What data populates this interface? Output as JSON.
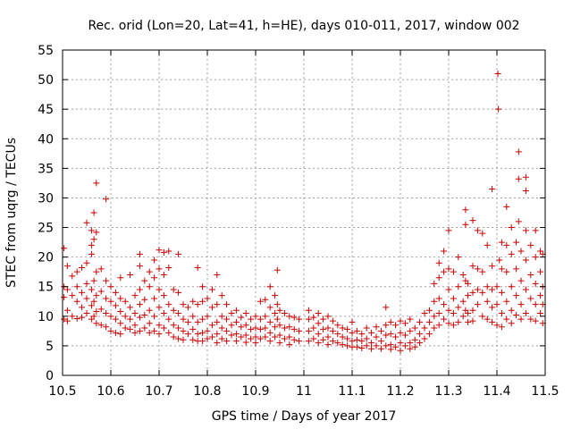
{
  "chart_data": {
    "type": "scatter",
    "title": "Rec. orid (Lon=20, Lat=41, h=HE), days 010-011, 2017, window 002",
    "xlabel": "GPS time / Days of year 2017",
    "ylabel": "STEC from uqrg / TECUs",
    "xlim": [
      10.5,
      11.5
    ],
    "ylim": [
      0,
      55
    ],
    "xticks": [
      "10.5",
      "10.6",
      "10.7",
      "10.8",
      "10.9",
      "11",
      "11.1",
      "11.2",
      "11.3",
      "11.4",
      "11.5"
    ],
    "yticks": [
      "0",
      "5",
      "10",
      "15",
      "20",
      "25",
      "30",
      "35",
      "40",
      "45",
      "50",
      "55"
    ],
    "grid": true,
    "marker": "+",
    "color": "#cc0000",
    "points": [
      [
        10.503,
        21.5
      ],
      [
        10.503,
        15.0
      ],
      [
        10.503,
        13.2
      ],
      [
        10.503,
        9.5
      ],
      [
        10.51,
        18.5
      ],
      [
        10.51,
        14.5
      ],
      [
        10.51,
        11.0
      ],
      [
        10.51,
        9.2
      ],
      [
        10.52,
        16.8
      ],
      [
        10.52,
        13.5
      ],
      [
        10.52,
        10.0
      ],
      [
        10.53,
        17.5
      ],
      [
        10.53,
        15.0
      ],
      [
        10.53,
        12.5
      ],
      [
        10.53,
        9.6
      ],
      [
        10.54,
        18.2
      ],
      [
        10.54,
        14.0
      ],
      [
        10.54,
        11.5
      ],
      [
        10.54,
        9.8
      ],
      [
        10.55,
        25.8
      ],
      [
        10.55,
        19.0
      ],
      [
        10.55,
        15.5
      ],
      [
        10.55,
        13.0
      ],
      [
        10.55,
        10.5
      ],
      [
        10.56,
        24.5
      ],
      [
        10.56,
        22.0
      ],
      [
        10.56,
        20.5
      ],
      [
        10.56,
        14.5
      ],
      [
        10.56,
        11.8
      ],
      [
        10.56,
        9.5
      ],
      [
        10.565,
        27.5
      ],
      [
        10.565,
        23.0
      ],
      [
        10.565,
        16.0
      ],
      [
        10.565,
        12.5
      ],
      [
        10.565,
        10.0
      ],
      [
        10.57,
        32.5
      ],
      [
        10.57,
        24.2
      ],
      [
        10.57,
        17.5
      ],
      [
        10.57,
        13.5
      ],
      [
        10.57,
        10.8
      ],
      [
        10.57,
        8.8
      ],
      [
        10.58,
        18.0
      ],
      [
        10.58,
        14.2
      ],
      [
        10.58,
        11.2
      ],
      [
        10.58,
        8.5
      ],
      [
        10.59,
        29.8
      ],
      [
        10.59,
        16.0
      ],
      [
        10.59,
        13.0
      ],
      [
        10.59,
        10.5
      ],
      [
        10.59,
        8.2
      ],
      [
        10.6,
        15.0
      ],
      [
        10.6,
        12.5
      ],
      [
        10.6,
        10.0
      ],
      [
        10.6,
        7.5
      ],
      [
        10.61,
        14.0
      ],
      [
        10.61,
        11.8
      ],
      [
        10.61,
        9.5
      ],
      [
        10.61,
        7.2
      ],
      [
        10.62,
        16.5
      ],
      [
        10.62,
        13.0
      ],
      [
        10.62,
        10.8
      ],
      [
        10.62,
        8.8
      ],
      [
        10.62,
        7.0
      ],
      [
        10.63,
        12.5
      ],
      [
        10.63,
        10.0
      ],
      [
        10.63,
        8.0
      ],
      [
        10.64,
        17.0
      ],
      [
        10.64,
        11.5
      ],
      [
        10.64,
        9.5
      ],
      [
        10.64,
        7.8
      ],
      [
        10.65,
        13.5
      ],
      [
        10.65,
        10.5
      ],
      [
        10.65,
        8.5
      ],
      [
        10.65,
        7.2
      ],
      [
        10.66,
        20.5
      ],
      [
        10.66,
        18.5
      ],
      [
        10.66,
        14.5
      ],
      [
        10.66,
        12.0
      ],
      [
        10.66,
        9.8
      ],
      [
        10.66,
        7.5
      ],
      [
        10.67,
        16.0
      ],
      [
        10.67,
        12.8
      ],
      [
        10.67,
        10.2
      ],
      [
        10.67,
        8.0
      ],
      [
        10.68,
        17.5
      ],
      [
        10.68,
        15.0
      ],
      [
        10.68,
        11.0
      ],
      [
        10.68,
        8.8
      ],
      [
        10.68,
        7.2
      ],
      [
        10.69,
        19.5
      ],
      [
        10.69,
        16.5
      ],
      [
        10.69,
        13.0
      ],
      [
        10.69,
        10.0
      ],
      [
        10.69,
        7.5
      ],
      [
        10.7,
        21.2
      ],
      [
        10.7,
        18.0
      ],
      [
        10.7,
        14.5
      ],
      [
        10.7,
        11.5
      ],
      [
        10.7,
        8.5
      ],
      [
        10.7,
        7.0
      ],
      [
        10.71,
        20.8
      ],
      [
        10.71,
        17.0
      ],
      [
        10.71,
        13.5
      ],
      [
        10.71,
        10.5
      ],
      [
        10.71,
        8.0
      ],
      [
        10.72,
        21.0
      ],
      [
        10.72,
        18.2
      ],
      [
        10.72,
        12.0
      ],
      [
        10.72,
        9.5
      ],
      [
        10.72,
        7.2
      ],
      [
        10.73,
        14.5
      ],
      [
        10.73,
        11.0
      ],
      [
        10.73,
        8.5
      ],
      [
        10.73,
        6.5
      ],
      [
        10.74,
        20.5
      ],
      [
        10.74,
        14.0
      ],
      [
        10.74,
        10.5
      ],
      [
        10.74,
        8.0
      ],
      [
        10.74,
        6.2
      ],
      [
        10.75,
        12.0
      ],
      [
        10.75,
        9.5
      ],
      [
        10.75,
        7.5
      ],
      [
        10.75,
        6.0
      ],
      [
        10.76,
        11.5
      ],
      [
        10.76,
        9.0
      ],
      [
        10.76,
        7.0
      ],
      [
        10.77,
        12.5
      ],
      [
        10.77,
        10.0
      ],
      [
        10.77,
        7.8
      ],
      [
        10.77,
        6.0
      ],
      [
        10.78,
        18.2
      ],
      [
        10.78,
        12.0
      ],
      [
        10.78,
        9.0
      ],
      [
        10.78,
        7.0
      ],
      [
        10.78,
        5.8
      ],
      [
        10.79,
        15.0
      ],
      [
        10.79,
        12.5
      ],
      [
        10.79,
        9.5
      ],
      [
        10.79,
        7.2
      ],
      [
        10.79,
        5.8
      ],
      [
        10.8,
        13.0
      ],
      [
        10.8,
        10.0
      ],
      [
        10.8,
        7.5
      ],
      [
        10.8,
        6.2
      ],
      [
        10.81,
        14.5
      ],
      [
        10.81,
        11.5
      ],
      [
        10.81,
        8.5
      ],
      [
        10.81,
        6.5
      ],
      [
        10.82,
        17.0
      ],
      [
        10.82,
        12.0
      ],
      [
        10.82,
        9.0
      ],
      [
        10.82,
        7.0
      ],
      [
        10.82,
        5.5
      ],
      [
        10.83,
        13.5
      ],
      [
        10.83,
        10.0
      ],
      [
        10.83,
        8.0
      ],
      [
        10.83,
        6.2
      ],
      [
        10.84,
        12.0
      ],
      [
        10.84,
        9.5
      ],
      [
        10.84,
        7.5
      ],
      [
        10.84,
        5.8
      ],
      [
        10.85,
        10.5
      ],
      [
        10.85,
        8.5
      ],
      [
        10.85,
        6.8
      ],
      [
        10.86,
        11.0
      ],
      [
        10.86,
        9.0
      ],
      [
        10.86,
        7.0
      ],
      [
        10.86,
        5.8
      ],
      [
        10.87,
        9.8
      ],
      [
        10.87,
        8.2
      ],
      [
        10.87,
        6.5
      ],
      [
        10.88,
        10.5
      ],
      [
        10.88,
        8.5
      ],
      [
        10.88,
        6.8
      ],
      [
        10.88,
        5.6
      ],
      [
        10.89,
        9.5
      ],
      [
        10.89,
        7.8
      ],
      [
        10.89,
        6.2
      ],
      [
        10.9,
        10.0
      ],
      [
        10.9,
        8.0
      ],
      [
        10.9,
        6.5
      ],
      [
        10.9,
        5.5
      ],
      [
        10.91,
        12.5
      ],
      [
        10.91,
        9.5
      ],
      [
        10.91,
        7.8
      ],
      [
        10.91,
        6.2
      ],
      [
        10.92,
        12.8
      ],
      [
        10.92,
        10.0
      ],
      [
        10.92,
        8.0
      ],
      [
        10.92,
        6.5
      ],
      [
        10.93,
        15.0
      ],
      [
        10.93,
        11.5
      ],
      [
        10.93,
        9.0
      ],
      [
        10.93,
        7.2
      ],
      [
        10.93,
        5.8
      ],
      [
        10.94,
        13.5
      ],
      [
        10.94,
        10.5
      ],
      [
        10.94,
        8.2
      ],
      [
        10.94,
        6.5
      ],
      [
        10.945,
        17.8
      ],
      [
        10.945,
        12.0
      ],
      [
        10.945,
        9.5
      ],
      [
        10.95,
        11.0
      ],
      [
        10.95,
        8.5
      ],
      [
        10.95,
        6.8
      ],
      [
        10.95,
        5.5
      ],
      [
        10.96,
        10.5
      ],
      [
        10.96,
        8.0
      ],
      [
        10.96,
        6.2
      ],
      [
        10.97,
        10.0
      ],
      [
        10.97,
        8.2
      ],
      [
        10.97,
        6.5
      ],
      [
        10.97,
        5.2
      ],
      [
        10.98,
        9.8
      ],
      [
        10.98,
        7.8
      ],
      [
        10.98,
        6.0
      ],
      [
        10.99,
        9.5
      ],
      [
        10.99,
        7.5
      ],
      [
        10.99,
        5.8
      ],
      [
        11.01,
        11.0
      ],
      [
        11.01,
        9.5
      ],
      [
        11.01,
        7.5
      ],
      [
        11.01,
        5.8
      ],
      [
        11.02,
        9.8
      ],
      [
        11.02,
        8.0
      ],
      [
        11.02,
        6.2
      ],
      [
        11.03,
        10.5
      ],
      [
        11.03,
        8.8
      ],
      [
        11.03,
        7.0
      ],
      [
        11.03,
        5.5
      ],
      [
        11.04,
        9.5
      ],
      [
        11.04,
        7.8
      ],
      [
        11.04,
        6.0
      ],
      [
        11.05,
        10.0
      ],
      [
        11.05,
        8.0
      ],
      [
        11.05,
        6.5
      ],
      [
        11.05,
        5.2
      ],
      [
        11.06,
        9.2
      ],
      [
        11.06,
        7.5
      ],
      [
        11.06,
        5.8
      ],
      [
        11.07,
        8.5
      ],
      [
        11.07,
        7.0
      ],
      [
        11.07,
        5.5
      ],
      [
        11.08,
        8.0
      ],
      [
        11.08,
        6.5
      ],
      [
        11.08,
        5.2
      ],
      [
        11.09,
        7.8
      ],
      [
        11.09,
        6.2
      ],
      [
        11.09,
        5.0
      ],
      [
        11.1,
        9.0
      ],
      [
        11.1,
        7.2
      ],
      [
        11.1,
        5.8
      ],
      [
        11.1,
        4.8
      ],
      [
        11.11,
        7.5
      ],
      [
        11.11,
        6.0
      ],
      [
        11.11,
        4.8
      ],
      [
        11.12,
        7.0
      ],
      [
        11.12,
        5.8
      ],
      [
        11.12,
        4.6
      ],
      [
        11.13,
        8.0
      ],
      [
        11.13,
        6.2
      ],
      [
        11.13,
        5.0
      ],
      [
        11.14,
        7.2
      ],
      [
        11.14,
        5.5
      ],
      [
        11.14,
        4.5
      ],
      [
        11.15,
        8.2
      ],
      [
        11.15,
        6.5
      ],
      [
        11.15,
        5.0
      ],
      [
        11.16,
        7.5
      ],
      [
        11.16,
        5.8
      ],
      [
        11.16,
        4.5
      ],
      [
        11.17,
        11.5
      ],
      [
        11.17,
        8.5
      ],
      [
        11.17,
        6.8
      ],
      [
        11.17,
        5.0
      ],
      [
        11.18,
        9.0
      ],
      [
        11.18,
        7.0
      ],
      [
        11.18,
        5.2
      ],
      [
        11.18,
        4.4
      ],
      [
        11.19,
        8.5
      ],
      [
        11.19,
        6.5
      ],
      [
        11.19,
        4.8
      ],
      [
        11.2,
        9.2
      ],
      [
        11.2,
        7.2
      ],
      [
        11.2,
        5.5
      ],
      [
        11.2,
        4.2
      ],
      [
        11.21,
        8.8
      ],
      [
        11.21,
        6.8
      ],
      [
        11.21,
        5.0
      ],
      [
        11.22,
        9.5
      ],
      [
        11.22,
        7.5
      ],
      [
        11.22,
        5.5
      ],
      [
        11.22,
        4.5
      ],
      [
        11.23,
        8.0
      ],
      [
        11.23,
        6.0
      ],
      [
        11.23,
        4.8
      ],
      [
        11.24,
        9.0
      ],
      [
        11.24,
        7.0
      ],
      [
        11.24,
        5.5
      ],
      [
        11.25,
        10.5
      ],
      [
        11.25,
        8.0
      ],
      [
        11.25,
        6.2
      ],
      [
        11.26,
        11.0
      ],
      [
        11.26,
        9.0
      ],
      [
        11.26,
        7.0
      ],
      [
        11.27,
        15.5
      ],
      [
        11.27,
        12.5
      ],
      [
        11.27,
        10.0
      ],
      [
        11.27,
        8.0
      ],
      [
        11.28,
        19.0
      ],
      [
        11.28,
        16.5
      ],
      [
        11.28,
        13.0
      ],
      [
        11.28,
        10.5
      ],
      [
        11.28,
        8.5
      ],
      [
        11.29,
        21.0
      ],
      [
        11.29,
        17.5
      ],
      [
        11.29,
        12.0
      ],
      [
        11.29,
        9.5
      ],
      [
        11.3,
        24.5
      ],
      [
        11.3,
        18.0
      ],
      [
        11.3,
        14.5
      ],
      [
        11.3,
        11.0
      ],
      [
        11.3,
        8.8
      ],
      [
        11.31,
        17.5
      ],
      [
        11.31,
        13.0
      ],
      [
        11.31,
        10.5
      ],
      [
        11.31,
        8.5
      ],
      [
        11.32,
        20.0
      ],
      [
        11.32,
        15.0
      ],
      [
        11.32,
        11.5
      ],
      [
        11.32,
        9.0
      ],
      [
        11.33,
        17.0
      ],
      [
        11.33,
        12.5
      ],
      [
        11.33,
        10.0
      ],
      [
        11.335,
        28.0
      ],
      [
        11.335,
        25.5
      ],
      [
        11.335,
        16.0
      ],
      [
        11.335,
        11.0
      ],
      [
        11.34,
        15.5
      ],
      [
        11.34,
        13.5
      ],
      [
        11.34,
        10.5
      ],
      [
        11.34,
        9.0
      ],
      [
        11.35,
        26.2
      ],
      [
        11.35,
        18.5
      ],
      [
        11.35,
        14.0
      ],
      [
        11.35,
        11.0
      ],
      [
        11.35,
        9.2
      ],
      [
        11.36,
        24.5
      ],
      [
        11.36,
        18.0
      ],
      [
        11.36,
        14.5
      ],
      [
        11.36,
        12.0
      ],
      [
        11.37,
        24.0
      ],
      [
        11.37,
        17.5
      ],
      [
        11.37,
        14.0
      ],
      [
        11.37,
        10.0
      ],
      [
        11.38,
        22.0
      ],
      [
        11.38,
        15.0
      ],
      [
        11.38,
        12.5
      ],
      [
        11.38,
        9.5
      ],
      [
        11.39,
        31.5
      ],
      [
        11.39,
        18.5
      ],
      [
        11.39,
        14.5
      ],
      [
        11.39,
        11.5
      ],
      [
        11.39,
        9.0
      ],
      [
        11.4,
        15.0
      ],
      [
        11.4,
        12.0
      ],
      [
        11.4,
        8.5
      ],
      [
        11.402,
        51.0
      ],
      [
        11.403,
        45.0
      ],
      [
        11.405,
        19.5
      ],
      [
        11.41,
        22.5
      ],
      [
        11.41,
        18.0
      ],
      [
        11.41,
        14.0
      ],
      [
        11.41,
        10.5
      ],
      [
        11.41,
        8.2
      ],
      [
        11.42,
        28.5
      ],
      [
        11.42,
        22.0
      ],
      [
        11.42,
        17.5
      ],
      [
        11.42,
        12.5
      ],
      [
        11.42,
        9.5
      ],
      [
        11.43,
        25.0
      ],
      [
        11.43,
        20.5
      ],
      [
        11.43,
        15.0
      ],
      [
        11.43,
        11.0
      ],
      [
        11.43,
        8.8
      ],
      [
        11.44,
        22.5
      ],
      [
        11.44,
        18.0
      ],
      [
        11.44,
        13.5
      ],
      [
        11.44,
        10.2
      ],
      [
        11.445,
        37.8
      ],
      [
        11.445,
        33.2
      ],
      [
        11.445,
        26.0
      ],
      [
        11.45,
        21.0
      ],
      [
        11.45,
        16.0
      ],
      [
        11.45,
        12.0
      ],
      [
        11.45,
        9.5
      ],
      [
        11.46,
        33.5
      ],
      [
        11.46,
        31.2
      ],
      [
        11.46,
        24.5
      ],
      [
        11.46,
        19.5
      ],
      [
        11.46,
        14.5
      ],
      [
        11.46,
        10.5
      ],
      [
        11.47,
        22.0
      ],
      [
        11.47,
        17.0
      ],
      [
        11.47,
        13.0
      ],
      [
        11.47,
        9.5
      ],
      [
        11.48,
        24.5
      ],
      [
        11.48,
        20.0
      ],
      [
        11.48,
        15.5
      ],
      [
        11.48,
        12.0
      ],
      [
        11.48,
        9.2
      ],
      [
        11.49,
        21.0
      ],
      [
        11.49,
        17.5
      ],
      [
        11.49,
        13.5
      ],
      [
        11.49,
        10.5
      ],
      [
        11.495,
        20.5
      ],
      [
        11.495,
        15.0
      ],
      [
        11.495,
        12.0
      ],
      [
        11.495,
        8.8
      ]
    ]
  }
}
